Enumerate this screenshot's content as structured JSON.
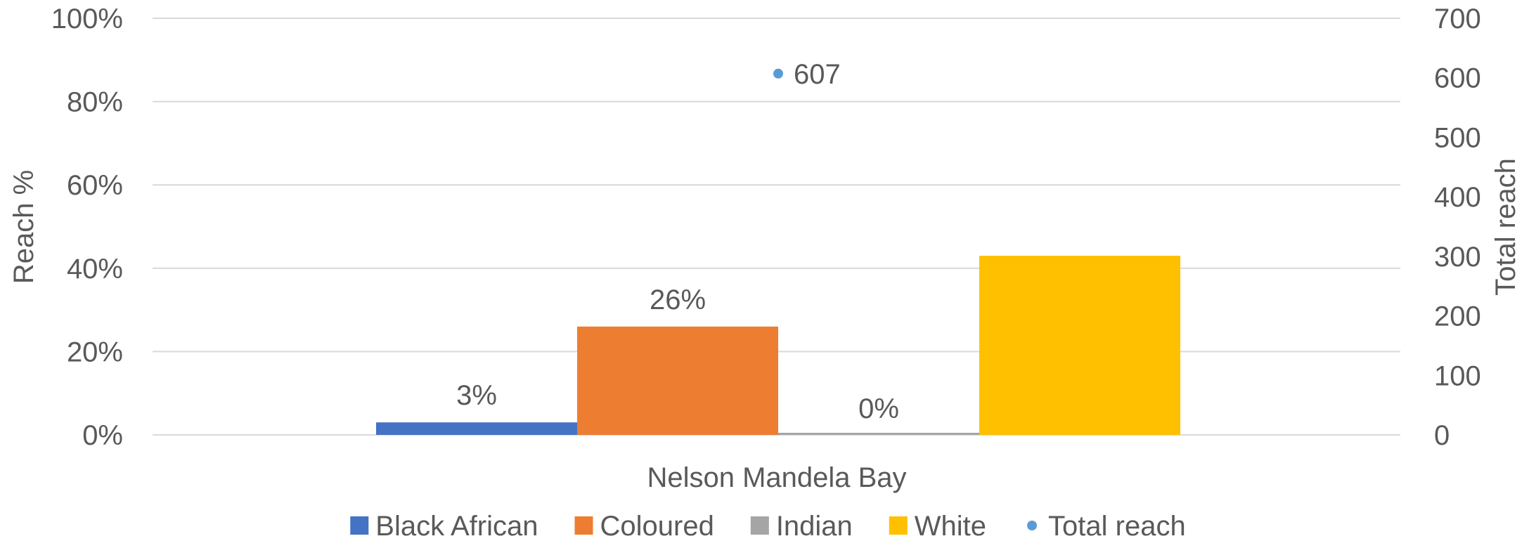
{
  "chart_data": {
    "type": "bar",
    "categories": [
      "Nelson Mandela Bay"
    ],
    "series": [
      {
        "name": "Black African",
        "values": [
          3
        ],
        "data_label": "3%",
        "color": "#4472C4",
        "axis": "left"
      },
      {
        "name": "Coloured",
        "values": [
          26
        ],
        "data_label": "26%",
        "color": "#ED7D31",
        "axis": "left"
      },
      {
        "name": "Indian",
        "values": [
          0
        ],
        "data_label": "0%",
        "color": "#A5A5A5",
        "axis": "left"
      },
      {
        "name": "White",
        "values": [
          43
        ],
        "data_label": "",
        "color": "#FFC000",
        "axis": "left"
      },
      {
        "name": "Total reach",
        "type": "scatter",
        "values": [
          607
        ],
        "data_label": "607",
        "color": "#5B9BD5",
        "axis": "right"
      }
    ],
    "ylabel": "Reach %",
    "y2label": "Total reach",
    "ylim": [
      0,
      100
    ],
    "y2lim": [
      0,
      700
    ],
    "yticks": [
      "0%",
      "20%",
      "40%",
      "60%",
      "80%",
      "100%"
    ],
    "y2ticks": [
      "0",
      "100",
      "200",
      "300",
      "400",
      "500",
      "600",
      "700"
    ],
    "grid": true,
    "legend": "bottom"
  }
}
